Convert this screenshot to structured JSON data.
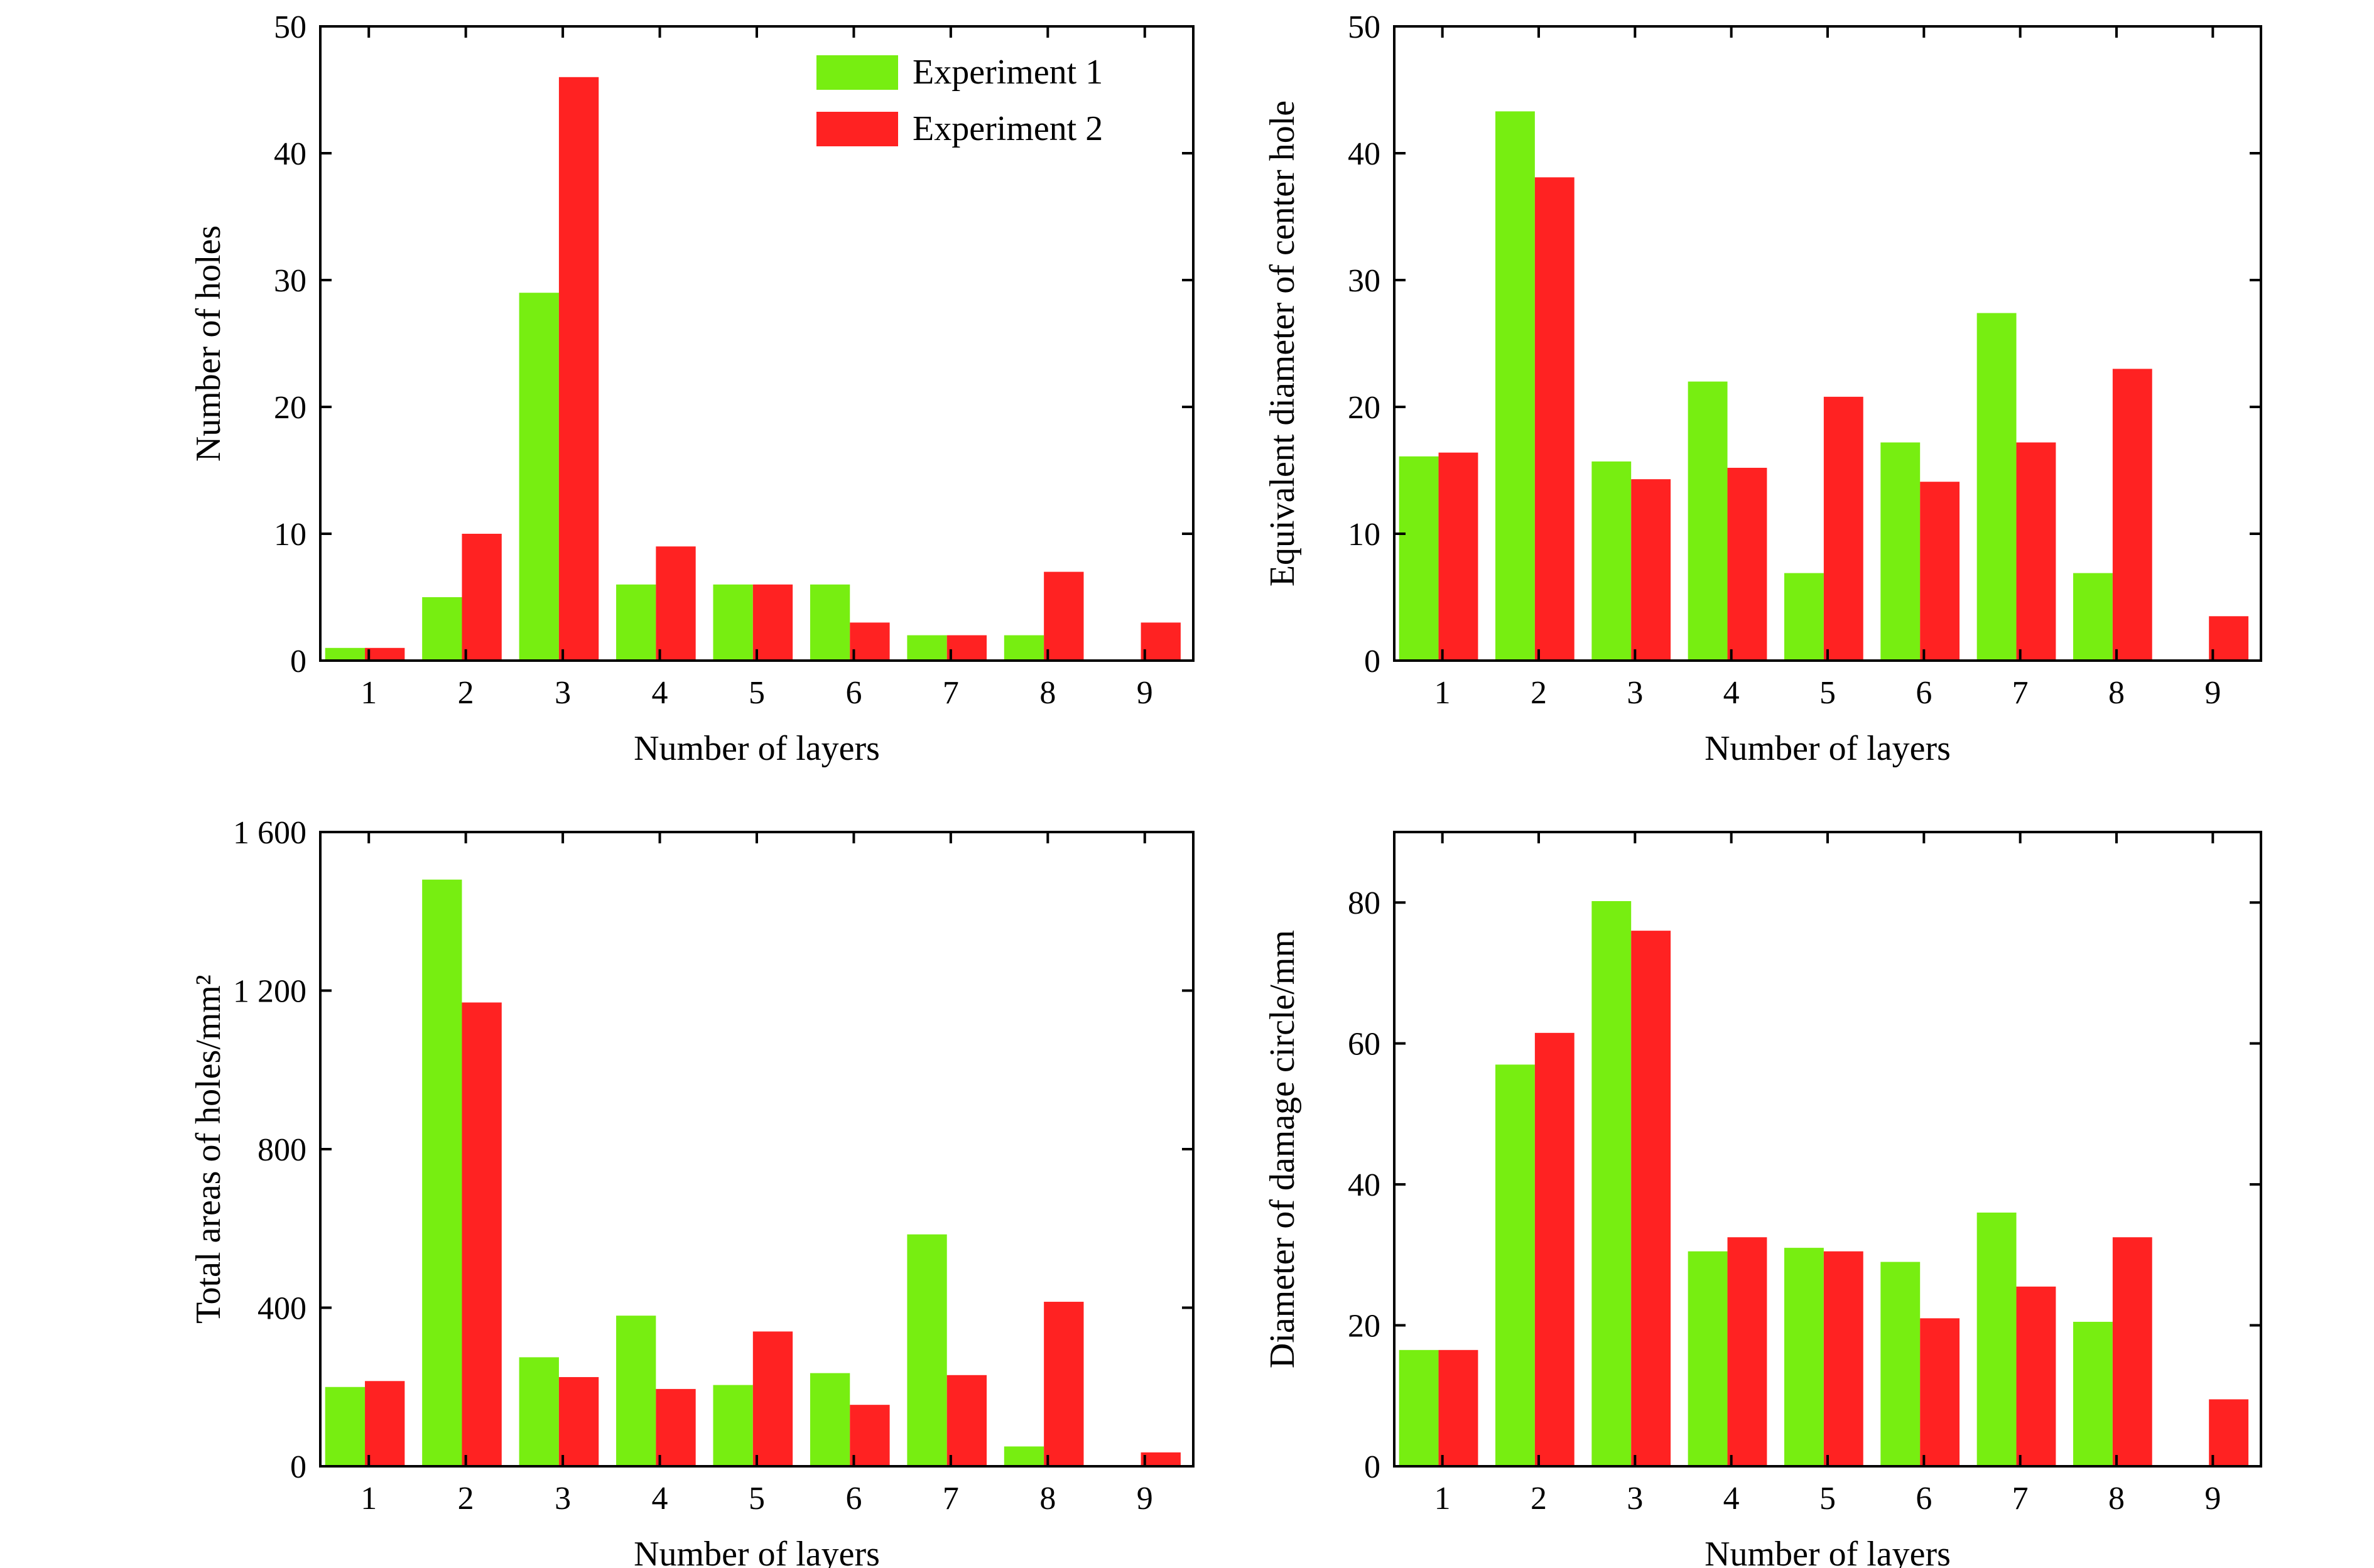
{
  "colors": {
    "experiment_1": "#77EE11",
    "experiment_2": "#FF2222"
  },
  "legend": [
    "Experiment 1",
    "Experiment 2"
  ],
  "chart_data": [
    {
      "type": "bar",
      "title": "",
      "xlabel": "Number of layers",
      "ylabel": "Number of holes",
      "categories": [
        "1",
        "2",
        "3",
        "4",
        "5",
        "6",
        "7",
        "8",
        "9"
      ],
      "ylim": [
        0,
        50
      ],
      "yticks": [
        0,
        10,
        20,
        30,
        40,
        50
      ],
      "ytick_labels": [
        "0",
        "10",
        "20",
        "30",
        "40",
        "50"
      ],
      "legend_placement": "top-right",
      "series": [
        {
          "name": "Experiment 1",
          "values": [
            1,
            5,
            29,
            6,
            6,
            6,
            2,
            2,
            0
          ]
        },
        {
          "name": "Experiment 2",
          "values": [
            1,
            10,
            46,
            9,
            6,
            3,
            2,
            7,
            3
          ]
        }
      ]
    },
    {
      "type": "bar",
      "title": "",
      "xlabel": "Number of layers",
      "ylabel": "Equivalent diameter of center hole",
      "categories": [
        "1",
        "2",
        "3",
        "4",
        "5",
        "6",
        "7",
        "8",
        "9"
      ],
      "ylim": [
        0,
        50
      ],
      "yticks": [
        0,
        10,
        20,
        30,
        40,
        50
      ],
      "ytick_labels": [
        "0",
        "10",
        "20",
        "30",
        "40",
        "50"
      ],
      "series": [
        {
          "name": "Experiment 1",
          "values": [
            16.1,
            43.3,
            15.7,
            22.0,
            6.9,
            17.2,
            27.4,
            6.9,
            0
          ]
        },
        {
          "name": "Experiment 2",
          "values": [
            16.4,
            38.1,
            14.3,
            15.2,
            20.8,
            14.1,
            17.2,
            23.0,
            3.5
          ]
        }
      ]
    },
    {
      "type": "bar",
      "title": "",
      "xlabel": "Number of layers",
      "ylabel": "Total areas of holes/mm²",
      "categories": [
        "1",
        "2",
        "3",
        "4",
        "5",
        "6",
        "7",
        "8",
        "9"
      ],
      "ylim": [
        0,
        1600
      ],
      "yticks": [
        0,
        400,
        800,
        1200,
        1600
      ],
      "ytick_labels": [
        "0",
        "400",
        "800",
        "1 200",
        "1 600"
      ],
      "series": [
        {
          "name": "Experiment 1",
          "values": [
            200,
            1480,
            275,
            380,
            205,
            235,
            585,
            50,
            0
          ]
        },
        {
          "name": "Experiment 2",
          "values": [
            215,
            1170,
            225,
            195,
            340,
            155,
            230,
            415,
            35
          ]
        }
      ]
    },
    {
      "type": "bar",
      "title": "",
      "xlabel": "Number of layers",
      "ylabel": "Diameter of damage circle/mm",
      "categories": [
        "1",
        "2",
        "3",
        "4",
        "5",
        "6",
        "7",
        "8",
        "9"
      ],
      "ylim": [
        0,
        90
      ],
      "yticks": [
        0,
        20,
        40,
        60,
        80
      ],
      "ytick_labels": [
        "0",
        "20",
        "40",
        "60",
        "80"
      ],
      "series": [
        {
          "name": "Experiment 1",
          "values": [
            16.5,
            57.0,
            80.2,
            30.5,
            31.0,
            29.0,
            36.0,
            20.5,
            0
          ]
        },
        {
          "name": "Experiment 2",
          "values": [
            16.5,
            61.5,
            76.0,
            32.5,
            30.5,
            21.0,
            25.5,
            32.5,
            9.5
          ]
        }
      ]
    }
  ]
}
